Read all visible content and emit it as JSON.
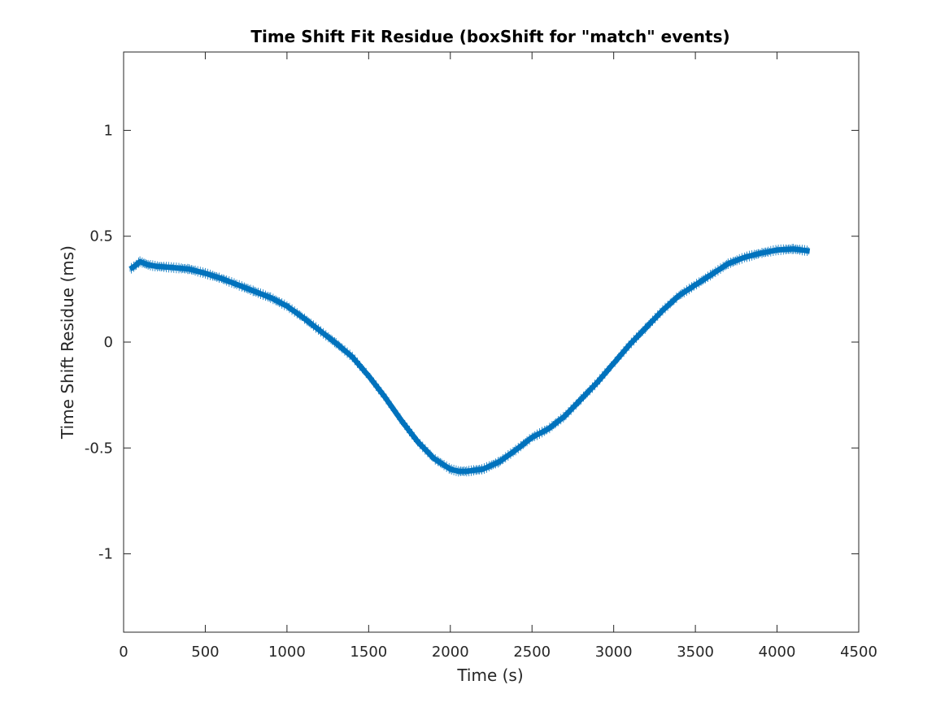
{
  "chart_data": {
    "type": "line",
    "title": "Time Shift Fit Residue (boxShift for \"match\" events)",
    "xlabel": "Time (s)",
    "ylabel": "Time Shift Residue (ms)",
    "xlim": [
      0,
      4500
    ],
    "ylim": [
      -1.37,
      1.37
    ],
    "xticks": [
      0,
      500,
      1000,
      1500,
      2000,
      2500,
      3000,
      3500,
      4000,
      4500
    ],
    "xtick_labels": [
      "0",
      "500",
      "1000",
      "1500",
      "2000",
      "2500",
      "3000",
      "3500",
      "4000",
      "4500"
    ],
    "yticks": [
      -1,
      -0.5,
      0,
      0.5,
      1
    ],
    "ytick_labels": [
      "-1",
      "-0.5",
      "0",
      "0.5",
      "1"
    ],
    "grid": false,
    "series": [
      {
        "color": "#0072BD",
        "band_width_ms": 0.025,
        "x": [
          40,
          70,
          100,
          150,
          200,
          300,
          400,
          500,
          600,
          700,
          800,
          900,
          1000,
          1100,
          1200,
          1300,
          1400,
          1500,
          1600,
          1700,
          1750,
          1800,
          1900,
          2000,
          2050,
          2100,
          2150,
          2200,
          2300,
          2400,
          2500,
          2600,
          2700,
          2800,
          2900,
          3000,
          3100,
          3200,
          3300,
          3400,
          3500,
          3600,
          3700,
          3800,
          3900,
          4000,
          4100,
          4200
        ],
        "y": [
          0.345,
          0.36,
          0.38,
          0.365,
          0.358,
          0.352,
          0.345,
          0.325,
          0.3,
          0.27,
          0.24,
          0.21,
          0.17,
          0.115,
          0.055,
          -0.005,
          -0.07,
          -0.16,
          -0.26,
          -0.37,
          -0.42,
          -0.47,
          -0.55,
          -0.6,
          -0.61,
          -0.61,
          -0.605,
          -0.6,
          -0.565,
          -0.51,
          -0.45,
          -0.41,
          -0.35,
          -0.27,
          -0.19,
          -0.1,
          -0.01,
          0.07,
          0.15,
          0.22,
          0.27,
          0.32,
          0.37,
          0.4,
          0.42,
          0.435,
          0.44,
          0.43
        ]
      }
    ]
  }
}
